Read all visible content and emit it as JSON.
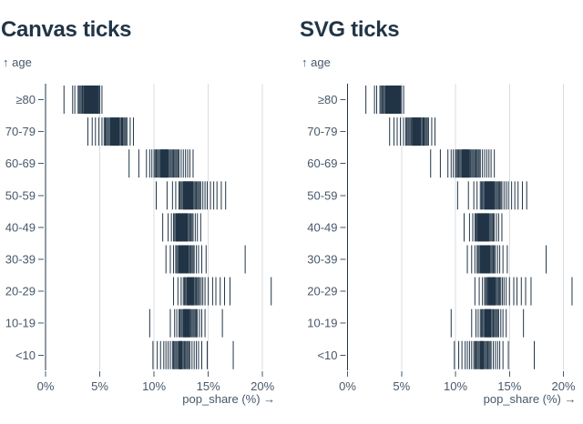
{
  "colors": {
    "background": "#ffffff",
    "title": "#213547",
    "tick": "#213547",
    "zero_rule": "#213547",
    "axis_text": "#47586a",
    "grid": "#d9dce1"
  },
  "charts": [
    {
      "title": "Canvas ticks"
    },
    {
      "title": "SVG ticks"
    }
  ],
  "chart_data": [
    {
      "type": "tick",
      "renderer": "canvas",
      "title": "Canvas ticks",
      "ylabel": "↑ age",
      "xlabel": "pop_share (%) →",
      "xlim": [
        0,
        20
      ],
      "x_ticks": [
        0,
        5,
        10,
        15,
        20
      ],
      "x_tick_labels": [
        "0%",
        "5%",
        "10%",
        "15%",
        "20%"
      ],
      "grid": true,
      "categories": [
        "≥80",
        "70-79",
        "60-69",
        "50-59",
        "40-49",
        "30-39",
        "20-29",
        "10-19",
        "<10"
      ],
      "series": [
        {
          "age": "≥80",
          "values": [
            1.7,
            2.5,
            2.7,
            3.0,
            3.1,
            3.2,
            3.3,
            3.4,
            3.5,
            3.55,
            3.6,
            3.65,
            3.7,
            3.75,
            3.8,
            3.85,
            3.9,
            3.95,
            4.0,
            4.05,
            4.1,
            4.15,
            4.2,
            4.25,
            4.3,
            4.35,
            4.4,
            4.45,
            4.5,
            4.55,
            4.6,
            4.65,
            4.7,
            4.75,
            4.8,
            4.85,
            4.9,
            5.0,
            5.2
          ]
        },
        {
          "age": "70-79",
          "values": [
            3.9,
            4.3,
            4.6,
            4.9,
            5.2,
            5.4,
            5.5,
            5.6,
            5.7,
            5.8,
            5.9,
            6.0,
            6.05,
            6.1,
            6.15,
            6.2,
            6.25,
            6.3,
            6.35,
            6.4,
            6.45,
            6.5,
            6.55,
            6.6,
            6.65,
            6.7,
            6.75,
            6.8,
            6.9,
            7.0,
            7.05,
            7.1,
            7.2,
            7.3,
            7.4,
            7.5,
            7.8,
            8.1
          ]
        },
        {
          "age": "60-69",
          "values": [
            7.7,
            8.6,
            9.3,
            9.6,
            9.8,
            10.0,
            10.1,
            10.2,
            10.3,
            10.4,
            10.5,
            10.6,
            10.65,
            10.7,
            10.75,
            10.8,
            10.85,
            10.9,
            10.95,
            11.0,
            11.05,
            11.1,
            11.15,
            11.2,
            11.25,
            11.3,
            11.4,
            11.5,
            11.6,
            11.7,
            11.8,
            11.9,
            12.0,
            12.1,
            12.2,
            12.3,
            12.5,
            12.7,
            12.9,
            13.1,
            13.3,
            13.6
          ]
        },
        {
          "age": "50-59",
          "values": [
            10.2,
            11.2,
            11.7,
            12.0,
            12.3,
            12.4,
            12.5,
            12.6,
            12.7,
            12.75,
            12.8,
            12.85,
            12.9,
            12.95,
            13.0,
            13.05,
            13.1,
            13.15,
            13.2,
            13.25,
            13.3,
            13.35,
            13.4,
            13.45,
            13.5,
            13.55,
            13.6,
            13.7,
            13.8,
            13.9,
            14.0,
            14.1,
            14.2,
            14.3,
            14.5,
            14.7,
            14.9,
            15.2,
            15.5,
            15.8,
            16.2,
            16.6
          ]
        },
        {
          "age": "40-49",
          "values": [
            10.8,
            11.3,
            11.6,
            11.8,
            11.9,
            12.0,
            12.05,
            12.1,
            12.15,
            12.2,
            12.25,
            12.3,
            12.35,
            12.4,
            12.45,
            12.5,
            12.55,
            12.6,
            12.65,
            12.7,
            12.75,
            12.8,
            12.85,
            12.9,
            12.95,
            13.0,
            13.05,
            13.1,
            13.2,
            13.3,
            13.4,
            13.5,
            13.6,
            13.8,
            14.0,
            14.3
          ]
        },
        {
          "age": "30-39",
          "values": [
            11.1,
            11.5,
            11.8,
            12.0,
            12.1,
            12.2,
            12.3,
            12.35,
            12.4,
            12.45,
            12.5,
            12.55,
            12.6,
            12.65,
            12.7,
            12.75,
            12.8,
            12.85,
            12.9,
            12.95,
            13.0,
            13.05,
            13.1,
            13.15,
            13.2,
            13.3,
            13.4,
            13.5,
            13.6,
            13.7,
            13.9,
            14.1,
            14.4,
            14.8,
            18.4
          ]
        },
        {
          "age": "20-29",
          "values": [
            11.8,
            12.2,
            12.5,
            12.7,
            12.8,
            12.9,
            13.0,
            13.05,
            13.1,
            13.15,
            13.2,
            13.25,
            13.3,
            13.35,
            13.4,
            13.45,
            13.5,
            13.55,
            13.6,
            13.65,
            13.7,
            13.8,
            13.9,
            14.0,
            14.1,
            14.2,
            14.35,
            14.5,
            14.7,
            15.0,
            15.4,
            15.7,
            16.1,
            16.5,
            17.0,
            20.8
          ]
        },
        {
          "age": "10-19",
          "values": [
            9.6,
            11.5,
            11.9,
            12.1,
            12.3,
            12.4,
            12.5,
            12.6,
            12.7,
            12.75,
            12.8,
            12.85,
            12.9,
            12.95,
            13.0,
            13.05,
            13.1,
            13.15,
            13.2,
            13.25,
            13.3,
            13.4,
            13.5,
            13.6,
            13.7,
            13.8,
            13.9,
            14.0,
            14.2,
            14.4,
            14.7,
            16.3
          ]
        },
        {
          "age": "<10",
          "values": [
            9.9,
            10.3,
            10.6,
            10.9,
            11.1,
            11.3,
            11.5,
            11.7,
            11.8,
            11.9,
            12.0,
            12.1,
            12.2,
            12.3,
            12.35,
            12.4,
            12.45,
            12.5,
            12.55,
            12.6,
            12.7,
            12.8,
            12.9,
            13.0,
            13.1,
            13.2,
            13.3,
            13.5,
            13.7,
            13.9,
            14.1,
            14.4,
            14.9,
            17.3
          ]
        }
      ]
    },
    {
      "type": "tick",
      "renderer": "svg",
      "title": "SVG ticks",
      "ylabel": "↑ age",
      "xlabel": "pop_share (%) →",
      "xlim": [
        0,
        20
      ],
      "x_ticks": [
        0,
        5,
        10,
        15,
        20
      ],
      "x_tick_labels": [
        "0%",
        "5%",
        "10%",
        "15%",
        "20%"
      ],
      "grid": true,
      "categories": [
        "≥80",
        "70-79",
        "60-69",
        "50-59",
        "40-49",
        "30-39",
        "20-29",
        "10-19",
        "<10"
      ],
      "series": [
        {
          "age": "≥80",
          "values": [
            1.7,
            2.5,
            2.7,
            3.0,
            3.1,
            3.2,
            3.3,
            3.4,
            3.5,
            3.55,
            3.6,
            3.65,
            3.7,
            3.75,
            3.8,
            3.85,
            3.9,
            3.95,
            4.0,
            4.05,
            4.1,
            4.15,
            4.2,
            4.25,
            4.3,
            4.35,
            4.4,
            4.45,
            4.5,
            4.55,
            4.6,
            4.65,
            4.7,
            4.75,
            4.8,
            4.85,
            4.9,
            5.0,
            5.2
          ]
        },
        {
          "age": "70-79",
          "values": [
            3.9,
            4.3,
            4.6,
            4.9,
            5.2,
            5.4,
            5.5,
            5.6,
            5.7,
            5.8,
            5.9,
            6.0,
            6.05,
            6.1,
            6.15,
            6.2,
            6.25,
            6.3,
            6.35,
            6.4,
            6.45,
            6.5,
            6.55,
            6.6,
            6.65,
            6.7,
            6.75,
            6.8,
            6.9,
            7.0,
            7.05,
            7.1,
            7.2,
            7.3,
            7.4,
            7.5,
            7.8,
            8.1
          ]
        },
        {
          "age": "60-69",
          "values": [
            7.7,
            8.6,
            9.3,
            9.6,
            9.8,
            10.0,
            10.1,
            10.2,
            10.3,
            10.4,
            10.5,
            10.6,
            10.65,
            10.7,
            10.75,
            10.8,
            10.85,
            10.9,
            10.95,
            11.0,
            11.05,
            11.1,
            11.15,
            11.2,
            11.25,
            11.3,
            11.4,
            11.5,
            11.6,
            11.7,
            11.8,
            11.9,
            12.0,
            12.1,
            12.2,
            12.3,
            12.5,
            12.7,
            12.9,
            13.1,
            13.3,
            13.6
          ]
        },
        {
          "age": "50-59",
          "values": [
            10.2,
            11.2,
            11.7,
            12.0,
            12.3,
            12.4,
            12.5,
            12.6,
            12.7,
            12.75,
            12.8,
            12.85,
            12.9,
            12.95,
            13.0,
            13.05,
            13.1,
            13.15,
            13.2,
            13.25,
            13.3,
            13.35,
            13.4,
            13.45,
            13.5,
            13.55,
            13.6,
            13.7,
            13.8,
            13.9,
            14.0,
            14.1,
            14.2,
            14.3,
            14.5,
            14.7,
            14.9,
            15.2,
            15.5,
            15.8,
            16.2,
            16.6
          ]
        },
        {
          "age": "40-49",
          "values": [
            10.8,
            11.3,
            11.6,
            11.8,
            11.9,
            12.0,
            12.05,
            12.1,
            12.15,
            12.2,
            12.25,
            12.3,
            12.35,
            12.4,
            12.45,
            12.5,
            12.55,
            12.6,
            12.65,
            12.7,
            12.75,
            12.8,
            12.85,
            12.9,
            12.95,
            13.0,
            13.05,
            13.1,
            13.2,
            13.3,
            13.4,
            13.5,
            13.6,
            13.8,
            14.0,
            14.3
          ]
        },
        {
          "age": "30-39",
          "values": [
            11.1,
            11.5,
            11.8,
            12.0,
            12.1,
            12.2,
            12.3,
            12.35,
            12.4,
            12.45,
            12.5,
            12.55,
            12.6,
            12.65,
            12.7,
            12.75,
            12.8,
            12.85,
            12.9,
            12.95,
            13.0,
            13.05,
            13.1,
            13.15,
            13.2,
            13.3,
            13.4,
            13.5,
            13.6,
            13.7,
            13.9,
            14.1,
            14.4,
            14.8,
            18.4
          ]
        },
        {
          "age": "20-29",
          "values": [
            11.8,
            12.2,
            12.5,
            12.7,
            12.8,
            12.9,
            13.0,
            13.05,
            13.1,
            13.15,
            13.2,
            13.25,
            13.3,
            13.35,
            13.4,
            13.45,
            13.5,
            13.55,
            13.6,
            13.65,
            13.7,
            13.8,
            13.9,
            14.0,
            14.1,
            14.2,
            14.35,
            14.5,
            14.7,
            15.0,
            15.4,
            15.7,
            16.1,
            16.5,
            17.0,
            20.8
          ]
        },
        {
          "age": "10-19",
          "values": [
            9.6,
            11.5,
            11.9,
            12.1,
            12.3,
            12.4,
            12.5,
            12.6,
            12.7,
            12.75,
            12.8,
            12.85,
            12.9,
            12.95,
            13.0,
            13.05,
            13.1,
            13.15,
            13.2,
            13.25,
            13.3,
            13.4,
            13.5,
            13.6,
            13.7,
            13.8,
            13.9,
            14.0,
            14.2,
            14.4,
            14.7,
            16.3
          ]
        },
        {
          "age": "<10",
          "values": [
            9.9,
            10.3,
            10.6,
            10.9,
            11.1,
            11.3,
            11.5,
            11.7,
            11.8,
            11.9,
            12.0,
            12.1,
            12.2,
            12.3,
            12.35,
            12.4,
            12.45,
            12.5,
            12.55,
            12.6,
            12.7,
            12.8,
            12.9,
            13.0,
            13.1,
            13.2,
            13.3,
            13.5,
            13.7,
            13.9,
            14.1,
            14.4,
            14.9,
            17.3
          ]
        }
      ]
    }
  ]
}
